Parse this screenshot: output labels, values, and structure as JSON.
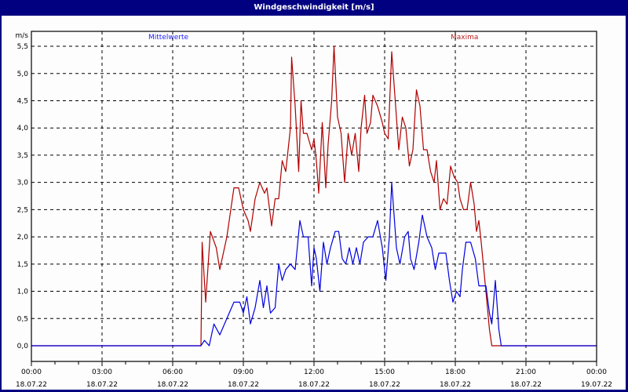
{
  "window": {
    "title": "Windgeschwindigkeit [m/s]"
  },
  "legend": {
    "mean_label": "Mittelwerte",
    "max_label": "Maxima"
  },
  "colors": {
    "titlebar": "#000080",
    "mean": "#0000e0",
    "max": "#b00000",
    "mean_label": "#2020ff",
    "max_label": "#c02020"
  },
  "chart_data": {
    "type": "line",
    "title": "Windgeschwindigkeit [m/s]",
    "xlabel": "",
    "ylabel": "m/s",
    "ylim": [
      0,
      5.5
    ],
    "xlim_hours": [
      0,
      24
    ],
    "grid": true,
    "legend_position": "top",
    "y_ticks": [
      "0,0",
      "0,5",
      "1,0",
      "1,5",
      "2,0",
      "2,5",
      "3,0",
      "3,5",
      "4,0",
      "4,5",
      "5,0",
      "5,5"
    ],
    "x_ticks": [
      {
        "time": "00:00",
        "date": "18.07.22"
      },
      {
        "time": "03:00",
        "date": "18.07.22"
      },
      {
        "time": "06:00",
        "date": "18.07.22"
      },
      {
        "time": "09:00",
        "date": "18.07.22"
      },
      {
        "time": "12:00",
        "date": "18.07.22"
      },
      {
        "time": "15:00",
        "date": "18.07.22"
      },
      {
        "time": "18:00",
        "date": "18.07.22"
      },
      {
        "time": "21:00",
        "date": "18.07.22"
      },
      {
        "time": "00:00",
        "date": "19.07.22"
      }
    ],
    "series": [
      {
        "name": "Maxima",
        "color": "#b00000",
        "points": [
          [
            0,
            0
          ],
          [
            7.2,
            0
          ],
          [
            7.25,
            1.9
          ],
          [
            7.4,
            0.8
          ],
          [
            7.6,
            2.1
          ],
          [
            7.85,
            1.8
          ],
          [
            8.0,
            1.4
          ],
          [
            8.3,
            2.0
          ],
          [
            8.6,
            2.9
          ],
          [
            8.8,
            2.9
          ],
          [
            9.0,
            2.5
          ],
          [
            9.2,
            2.3
          ],
          [
            9.3,
            2.1
          ],
          [
            9.5,
            2.7
          ],
          [
            9.7,
            3.0
          ],
          [
            9.9,
            2.8
          ],
          [
            10.0,
            2.9
          ],
          [
            10.2,
            2.2
          ],
          [
            10.35,
            2.7
          ],
          [
            10.5,
            2.7
          ],
          [
            10.65,
            3.4
          ],
          [
            10.8,
            3.2
          ],
          [
            10.9,
            3.6
          ],
          [
            11.0,
            4.0
          ],
          [
            11.05,
            5.3
          ],
          [
            11.2,
            4.4
          ],
          [
            11.35,
            3.2
          ],
          [
            11.45,
            4.5
          ],
          [
            11.55,
            3.9
          ],
          [
            11.7,
            3.9
          ],
          [
            11.9,
            3.6
          ],
          [
            12.0,
            3.8
          ],
          [
            12.1,
            3.4
          ],
          [
            12.2,
            2.8
          ],
          [
            12.35,
            4.1
          ],
          [
            12.5,
            2.9
          ],
          [
            12.6,
            3.7
          ],
          [
            12.75,
            4.5
          ],
          [
            12.85,
            5.5
          ],
          [
            13.0,
            4.2
          ],
          [
            13.15,
            3.9
          ],
          [
            13.3,
            3.0
          ],
          [
            13.45,
            3.9
          ],
          [
            13.6,
            3.5
          ],
          [
            13.75,
            3.9
          ],
          [
            13.9,
            3.2
          ],
          [
            14.0,
            4.0
          ],
          [
            14.15,
            4.6
          ],
          [
            14.25,
            3.9
          ],
          [
            14.4,
            4.1
          ],
          [
            14.5,
            4.6
          ],
          [
            14.7,
            4.4
          ],
          [
            14.9,
            4.1
          ],
          [
            15.0,
            3.9
          ],
          [
            15.15,
            3.8
          ],
          [
            15.3,
            5.4
          ],
          [
            15.45,
            4.5
          ],
          [
            15.6,
            3.6
          ],
          [
            15.75,
            4.2
          ],
          [
            15.9,
            4.0
          ],
          [
            16.05,
            3.3
          ],
          [
            16.2,
            3.6
          ],
          [
            16.35,
            4.7
          ],
          [
            16.5,
            4.4
          ],
          [
            16.65,
            3.6
          ],
          [
            16.8,
            3.6
          ],
          [
            16.95,
            3.2
          ],
          [
            17.1,
            3.0
          ],
          [
            17.2,
            3.4
          ],
          [
            17.35,
            2.5
          ],
          [
            17.5,
            2.7
          ],
          [
            17.65,
            2.6
          ],
          [
            17.8,
            3.3
          ],
          [
            17.95,
            3.1
          ],
          [
            18.1,
            3.0
          ],
          [
            18.2,
            2.7
          ],
          [
            18.35,
            2.5
          ],
          [
            18.5,
            2.5
          ],
          [
            18.65,
            3.0
          ],
          [
            18.8,
            2.6
          ],
          [
            18.9,
            2.1
          ],
          [
            19.0,
            2.3
          ],
          [
            19.1,
            1.9
          ],
          [
            19.3,
            1.0
          ],
          [
            19.45,
            0.3
          ],
          [
            19.55,
            0
          ],
          [
            24,
            0
          ]
        ]
      },
      {
        "name": "Mittelwerte",
        "color": "#0000e0",
        "points": [
          [
            0,
            0
          ],
          [
            7.2,
            0
          ],
          [
            7.35,
            0.1
          ],
          [
            7.55,
            0.0
          ],
          [
            7.75,
            0.4
          ],
          [
            8.0,
            0.2
          ],
          [
            8.3,
            0.5
          ],
          [
            8.6,
            0.8
          ],
          [
            8.85,
            0.8
          ],
          [
            9.0,
            0.6
          ],
          [
            9.15,
            0.9
          ],
          [
            9.3,
            0.4
          ],
          [
            9.5,
            0.7
          ],
          [
            9.7,
            1.2
          ],
          [
            9.85,
            0.7
          ],
          [
            10.0,
            1.1
          ],
          [
            10.15,
            0.6
          ],
          [
            10.35,
            0.7
          ],
          [
            10.5,
            1.5
          ],
          [
            10.65,
            1.2
          ],
          [
            10.8,
            1.4
          ],
          [
            11.0,
            1.5
          ],
          [
            11.2,
            1.4
          ],
          [
            11.4,
            2.3
          ],
          [
            11.55,
            2.0
          ],
          [
            11.75,
            2.0
          ],
          [
            11.9,
            1.1
          ],
          [
            12.0,
            1.8
          ],
          [
            12.1,
            1.6
          ],
          [
            12.25,
            1.0
          ],
          [
            12.4,
            1.9
          ],
          [
            12.55,
            1.5
          ],
          [
            12.7,
            1.8
          ],
          [
            12.9,
            2.1
          ],
          [
            13.05,
            2.1
          ],
          [
            13.2,
            1.6
          ],
          [
            13.35,
            1.5
          ],
          [
            13.5,
            1.8
          ],
          [
            13.65,
            1.5
          ],
          [
            13.8,
            1.8
          ],
          [
            13.95,
            1.5
          ],
          [
            14.1,
            1.9
          ],
          [
            14.3,
            2.0
          ],
          [
            14.5,
            2.0
          ],
          [
            14.7,
            2.3
          ],
          [
            14.9,
            1.8
          ],
          [
            15.05,
            1.2
          ],
          [
            15.2,
            2.0
          ],
          [
            15.3,
            3.0
          ],
          [
            15.5,
            1.8
          ],
          [
            15.65,
            1.5
          ],
          [
            15.85,
            2.0
          ],
          [
            16.0,
            2.1
          ],
          [
            16.1,
            1.6
          ],
          [
            16.25,
            1.4
          ],
          [
            16.45,
            1.9
          ],
          [
            16.6,
            2.4
          ],
          [
            16.8,
            2.0
          ],
          [
            17.0,
            1.8
          ],
          [
            17.15,
            1.4
          ],
          [
            17.3,
            1.7
          ],
          [
            17.6,
            1.7
          ],
          [
            17.75,
            1.2
          ],
          [
            17.9,
            0.8
          ],
          [
            18.05,
            1.0
          ],
          [
            18.2,
            0.9
          ],
          [
            18.3,
            1.4
          ],
          [
            18.45,
            1.9
          ],
          [
            18.65,
            1.9
          ],
          [
            18.85,
            1.6
          ],
          [
            19.0,
            1.1
          ],
          [
            19.3,
            1.1
          ],
          [
            19.45,
            0.6
          ],
          [
            19.55,
            0.4
          ],
          [
            19.7,
            1.2
          ],
          [
            19.85,
            0.3
          ],
          [
            19.95,
            0
          ],
          [
            24,
            0
          ]
        ]
      }
    ]
  }
}
